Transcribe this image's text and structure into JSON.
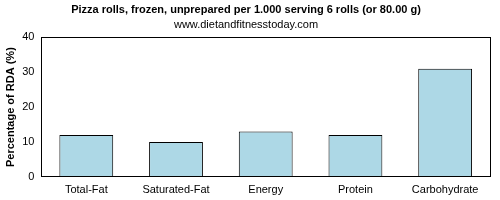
{
  "chart_data": {
    "type": "bar",
    "title": "Pizza rolls, frozen, unprepared per 1.000 serving 6 rolls (or 80.00 g)",
    "subtitle": "www.dietandfitnesstoday.com",
    "y_label": "Percentage of RDA (%)",
    "categories": [
      "Total-Fat",
      "Saturated-Fat",
      "Energy",
      "Protein",
      "Carbohydrate"
    ],
    "values": [
      12,
      10,
      13,
      12,
      31
    ],
    "color": "#add8e6",
    "ylim": [
      0,
      40
    ],
    "yticks": [
      0,
      10,
      20,
      30,
      40
    ],
    "grid": false
  }
}
